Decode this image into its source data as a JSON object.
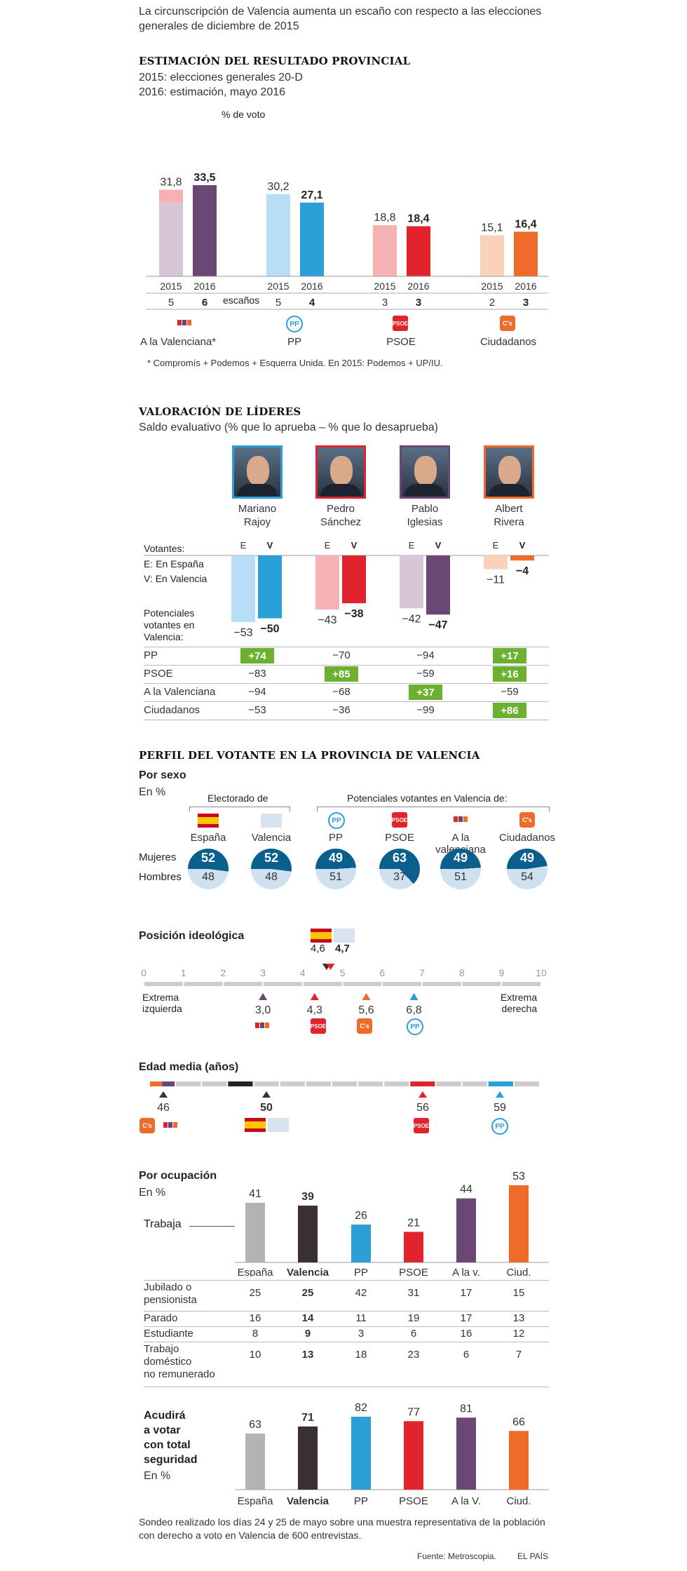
{
  "intro": "La circunscripción de Valencia aumenta un escaño con respecto a las elecciones generales de diciembre de 2015",
  "estimacion": {
    "title": "ESTIMACIÓN DEL RESULTADO PROVINCIAL",
    "sub1": "2015: elecciones generales 20-D",
    "sub2": "2016: estimación, mayo 2016",
    "pct_label": "% de voto",
    "escanos_label": "escaños",
    "note": "* Compromís + Podemos + Esquerra Unida. En 2015: Podemos + UP/IU."
  },
  "chart_data": [
    {
      "type": "bar",
      "title": "ESTIMACIÓN DEL RESULTADO PROVINCIAL",
      "categories": [
        "A la Valenciana*",
        "PP",
        "PSOE",
        "Ciudadanos"
      ],
      "years": [
        "2015",
        "2016"
      ],
      "series": [
        {
          "name": "2015",
          "values": [
            31.8,
            30.2,
            18.8,
            15.1
          ]
        },
        {
          "name": "2016",
          "values": [
            33.5,
            27.1,
            18.4,
            16.4
          ]
        }
      ],
      "value_labels_2015": [
        "31,8",
        "30,2",
        "18,8",
        "15,1"
      ],
      "value_labels_2016": [
        "33,5",
        "27,1",
        "18,4",
        "16,4"
      ],
      "seats_2015": [
        "5",
        "5",
        "3",
        "2"
      ],
      "seats_2016": [
        "6",
        "4",
        "3",
        "3"
      ],
      "extra_2015_alv": 27.1,
      "colors_2015": [
        "#d7c5d8",
        "#b7def5",
        "#f6b2b3",
        "#fad1b9"
      ],
      "colors_2016": [
        "#6a4775",
        "#2a9fd8",
        "#e1232b",
        "#ee6b2a"
      ],
      "ylim": [
        0,
        40
      ]
    },
    {
      "type": "bar",
      "title": "VALORACIÓN DE LÍDERES",
      "categories": [
        "Mariano Rajoy",
        "Pedro Sánchez",
        "Pablo Iglesias",
        "Albert Rivera"
      ],
      "series": [
        {
          "name": "E",
          "values": [
            -53,
            -43,
            -42,
            -11
          ]
        },
        {
          "name": "V",
          "values": [
            -50,
            -38,
            -47,
            -4
          ]
        }
      ],
      "labels_E": [
        "−53",
        "−43",
        "−42",
        "−11"
      ],
      "labels_V": [
        "−50",
        "−38",
        "−47",
        "−4"
      ],
      "colors_E": [
        "#b7def5",
        "#f6b2b3",
        "#d7c5d8",
        "#fad1b9"
      ],
      "colors_V": [
        "#2a9fd8",
        "#e1232b",
        "#6a4775",
        "#ee6b2a"
      ],
      "ylim": [
        -60,
        0
      ]
    },
    {
      "type": "bar",
      "title": "Por ocupación",
      "categories": [
        "España",
        "Valencia",
        "PP",
        "PSOE",
        "A la v.",
        "Ciud."
      ],
      "values": [
        41,
        39,
        26,
        21,
        44,
        53
      ],
      "colors": [
        "#b3b3b3",
        "#3a2f35",
        "#2a9fd8",
        "#e1232b",
        "#6a4775",
        "#ee6b2a"
      ],
      "ylim": [
        0,
        60
      ]
    },
    {
      "type": "bar",
      "title": "Acudirá a votar con total seguridad",
      "categories": [
        "España",
        "Valencia",
        "PP",
        "PSOE",
        "A la V.",
        "Ciud."
      ],
      "values": [
        63,
        71,
        82,
        77,
        81,
        66
      ],
      "colors": [
        "#b3b3b3",
        "#3a2f35",
        "#2a9fd8",
        "#e1232b",
        "#6a4775",
        "#ee6b2a"
      ],
      "ylim": [
        0,
        90
      ]
    }
  ],
  "lideres": {
    "title": "VALORACIÓN DE LÍDERES",
    "sub": "Saldo evaluativo (% que lo aprueba – % que lo desaprueba)",
    "names": [
      [
        "Mariano",
        "Rajoy"
      ],
      [
        "Pedro",
        "Sánchez"
      ],
      [
        "Pablo",
        "Iglesias"
      ],
      [
        "Albert",
        "Rivera"
      ]
    ],
    "photo_colors": [
      "#2a9fd8",
      "#e1232b",
      "#6a4775",
      "#ee6b2a"
    ],
    "votantes": "Votantes:",
    "e_label": "E: En España",
    "v_label": "V: En Valencia",
    "e": "E",
    "v": "V",
    "potenciales": [
      "Potenciales",
      "votantes en",
      "Valencia:"
    ],
    "rows": [
      {
        "label": "PP",
        "values": [
          "+74",
          "−70",
          "−94",
          "+17"
        ],
        "hi": [
          true,
          false,
          false,
          true
        ]
      },
      {
        "label": "PSOE",
        "values": [
          "−83",
          "+85",
          "−59",
          "+16"
        ],
        "hi": [
          false,
          true,
          false,
          true
        ]
      },
      {
        "label": "A la Valenciana",
        "values": [
          "−94",
          "−68",
          "+37",
          "−59"
        ],
        "hi": [
          false,
          false,
          true,
          false
        ]
      },
      {
        "label": "Ciudadanos",
        "values": [
          "−53",
          "−36",
          "−99",
          "+86"
        ],
        "hi": [
          false,
          false,
          false,
          true
        ]
      }
    ]
  },
  "perfil": {
    "title": "PERFIL DEL VOTANTE EN LA PROVINCIA DE VALENCIA",
    "sexo": "Por sexo",
    "en_pct": "En %",
    "electorado": "Electorado de",
    "potenciales": "Potenciales votantes en Valencia de:",
    "groups": [
      "España",
      "Valencia",
      "PP",
      "PSOE",
      "A la valenciana",
      "Ciudadanos"
    ],
    "mujeres": "Mujeres",
    "hombres": "Hombres",
    "mujeres_vals": [
      52,
      52,
      49,
      63,
      49,
      49
    ],
    "hombres_vals": [
      48,
      48,
      51,
      37,
      51,
      54
    ],
    "mujeres_labels": [
      "52",
      "52",
      "49",
      "63",
      "49",
      "49"
    ],
    "hombres_labels": [
      "48",
      "48",
      "51",
      "37",
      "51",
      "54"
    ]
  },
  "ideologia": {
    "title": "Posición ideológica",
    "ticks": [
      "0",
      "1",
      "2",
      "3",
      "4",
      "5",
      "6",
      "7",
      "8",
      "9",
      "10"
    ],
    "left": [
      "Extrema",
      "izquierda"
    ],
    "right": [
      "Extrema",
      "derecha"
    ],
    "top_values": [
      4.6,
      4.7
    ],
    "top_labels": [
      "4,6",
      "4,7"
    ],
    "markers": [
      {
        "value": 3.0,
        "label": "3,0",
        "color": "#6a4775"
      },
      {
        "value": 4.3,
        "label": "4,3",
        "color": "#e1232b"
      },
      {
        "value": 5.6,
        "label": "5,6",
        "color": "#ee6b2a"
      },
      {
        "value": 6.8,
        "label": "6,8",
        "color": "#2a9fd8"
      }
    ]
  },
  "edad": {
    "title": "Edad media (años)",
    "values": [
      46,
      50,
      56,
      59
    ],
    "labels": [
      "46",
      "50",
      "56",
      "59"
    ]
  },
  "ocupacion": {
    "title": "Por ocupación",
    "en_pct": "En %",
    "trabaja": "Trabaja",
    "top_labels": [
      "41",
      "39",
      "26",
      "21",
      "44",
      "53"
    ],
    "cols": [
      "España",
      "Valencia",
      "PP",
      "PSOE",
      "A la v.",
      "Ciud."
    ],
    "rows": [
      {
        "label": [
          "Jubilado o",
          "pensionista"
        ],
        "values": [
          "25",
          "25",
          "42",
          "31",
          "17",
          "15"
        ]
      },
      {
        "label": [
          "Parado"
        ],
        "values": [
          "16",
          "14",
          "11",
          "19",
          "17",
          "13"
        ]
      },
      {
        "label": [
          "Estudiante"
        ],
        "values": [
          "8",
          "9",
          "3",
          "6",
          "16",
          "12"
        ]
      },
      {
        "label": [
          "Trabajo",
          "doméstico",
          "no remunerado"
        ],
        "values": [
          "10",
          "13",
          "18",
          "23",
          "6",
          "7"
        ]
      }
    ]
  },
  "acudira": {
    "title": [
      "Acudirá",
      "a votar",
      "con total",
      "seguridad"
    ],
    "en_pct": "En %",
    "labels": [
      "63",
      "71",
      "82",
      "77",
      "81",
      "66"
    ],
    "cols": [
      "España",
      "Valencia",
      "PP",
      "PSOE",
      "A la V.",
      "Ciud."
    ]
  },
  "footer": {
    "text": "Sondeo realizado los días 24 y 25 de mayo sobre una muestra representativa de la población con derecho a voto en Valencia de 600 entrevistas.",
    "fuente": "Fuente: Metroscopia.",
    "brand": "EL PAÍS"
  },
  "logos": {
    "pp": "PP",
    "psoe": "PSOE",
    "cs": "C's"
  }
}
